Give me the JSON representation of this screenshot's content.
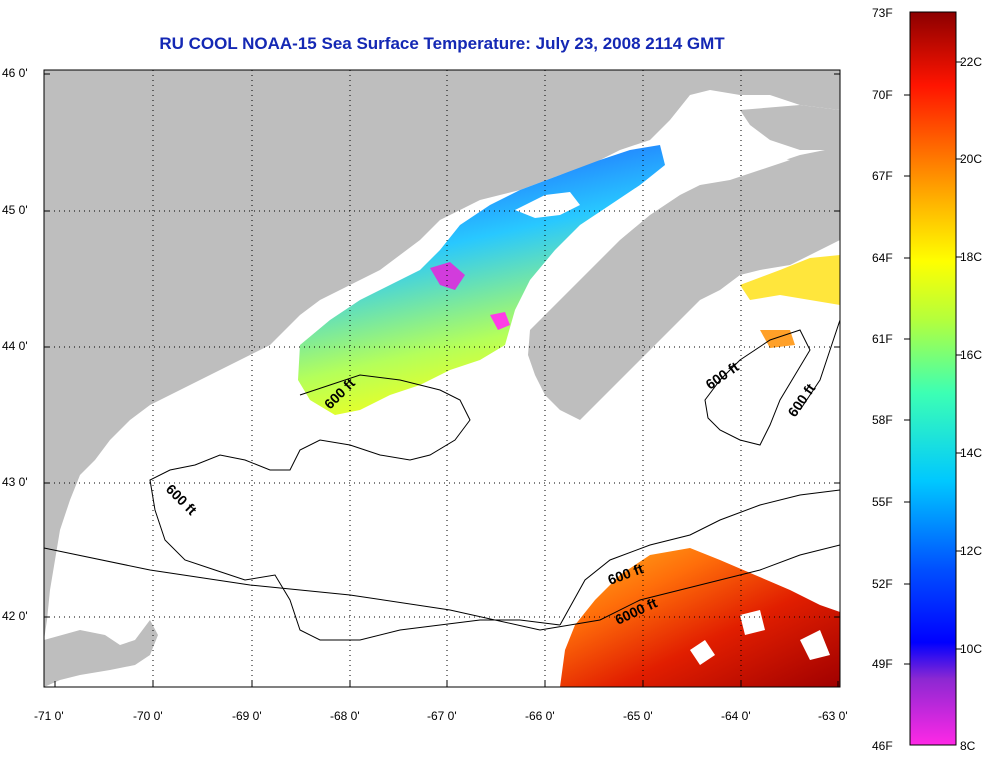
{
  "title": "RU COOL  NOAA-15  Sea Surface Temperature:  July 23, 2008 2114 GMT",
  "axes": {
    "lat_labels": [
      "46 0'",
      "45 0'",
      "44 0'",
      "43 0'",
      "42 0'"
    ],
    "lon_labels": [
      "-71 0'",
      "-70 0'",
      "-69 0'",
      "-68 0'",
      "-67 0'",
      "-66 0'",
      "-65 0'",
      "-64 0'",
      "-63 0'"
    ]
  },
  "contour_labels": [
    "600 ft",
    "600 ft",
    "600 ft",
    "600 ft",
    "600 ft",
    "6000 ft"
  ],
  "colorbar": {
    "fahrenheit_labels": [
      "73F",
      "70F",
      "67F",
      "64F",
      "61F",
      "58F",
      "55F",
      "52F",
      "49F",
      "46F"
    ],
    "celsius_labels": [
      "22C",
      "20C",
      "18C",
      "16C",
      "14C",
      "12C",
      "10C",
      "8C"
    ]
  },
  "colors": {
    "land": "#bebebe",
    "no_data": "#ffffff",
    "title": "#1428b4"
  }
}
